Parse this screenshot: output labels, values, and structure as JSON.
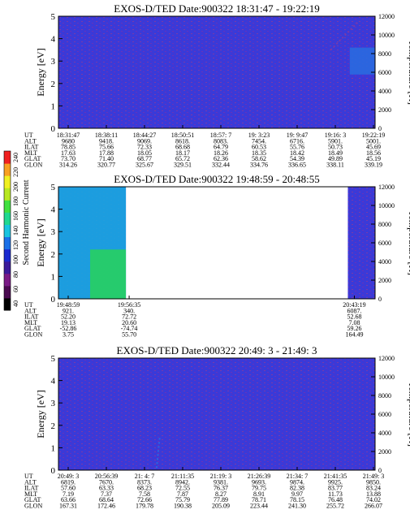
{
  "figure": {
    "colorbar": {
      "label": "Second Harmonic Current",
      "ticks": [
        "40",
        "60",
        "80",
        "100",
        "120",
        "140",
        "160",
        "180",
        "200",
        "220",
        "240"
      ],
      "colors": [
        "#000000",
        "#4a0a50",
        "#7a1a86",
        "#3a1a9a",
        "#1a2ad0",
        "#1a70e8",
        "#18c4e0",
        "#20d890",
        "#40e040",
        "#b8e820",
        "#f0f020",
        "#f8a020",
        "#f02020"
      ]
    },
    "cmap": {
      "background": "#3a3ad8",
      "speckle": "#7a3aa8",
      "cyan": "#19a8e0",
      "green": "#28d060",
      "blue": "#2a6ae0"
    }
  },
  "chart_data": [
    {
      "type": "heatmap",
      "title": "EXOS-D/TED   Date:900322   18:31:47 - 19:22:19",
      "ylabel": "Energy [eV]",
      "ylabel_right": "Temperature [K]",
      "ylim": [
        0,
        5
      ],
      "yticks": [
        "0",
        "1",
        "2",
        "3",
        "4",
        "5"
      ],
      "ylim_right": [
        0,
        12000
      ],
      "yticks_right": [
        "0",
        "2000",
        "4000",
        "6000",
        "8000",
        "10000",
        "12000"
      ],
      "data_columns": [
        0,
        1
      ],
      "features": [
        {
          "kind": "hot_region",
          "x": [
            0.92,
            1.0
          ],
          "y": [
            2.4,
            3.6
          ],
          "level": "blue"
        },
        {
          "kind": "trail",
          "x": [
            0.86,
            0.95
          ],
          "y": [
            3.5,
            4.8
          ],
          "level": "speckle"
        }
      ],
      "ephemeris": {
        "labels": [
          "UT",
          "ALT",
          "ILAT",
          "MLT",
          "GLAT",
          "GLON"
        ],
        "columns": [
          [
            "18:31:47",
            "9680",
            "78.85",
            "17.63",
            "73.70",
            "314.26"
          ],
          [
            "18:38:11",
            "9418.",
            "75.66",
            "17.88",
            "71.40",
            "320.77"
          ],
          [
            "18:44:27",
            "9069.",
            "72.33",
            "18.05",
            "68.77",
            "325.67"
          ],
          [
            "18:50:51",
            "8618.",
            "68.68",
            "18.17",
            "65.72",
            "329.51"
          ],
          [
            "18:57: 7",
            "8083.",
            "64.79",
            "18.26",
            "62.36",
            "332.44"
          ],
          [
            "19: 3:23",
            "7454.",
            "60.53",
            "18.35",
            "58.62",
            "334.76"
          ],
          [
            "19: 9:47",
            "6716.",
            "55.76",
            "18.42",
            "54.39",
            "336.65"
          ],
          [
            "19:16: 3",
            "5901.",
            "50.73",
            "18.49",
            "49.89",
            "338.11"
          ],
          [
            "19:22:19",
            "5001.",
            "45.69",
            "18.56",
            "45.19",
            "339.19"
          ]
        ]
      }
    },
    {
      "type": "heatmap",
      "title": "EXOS-D/TED   Date:900322   19:48:59 - 20:48:55",
      "ylabel": "Energy [eV]",
      "ylabel_right": "Temperature [K]",
      "ylim": [
        0,
        5
      ],
      "yticks": [
        "0",
        "1",
        "2",
        "3",
        "4",
        "5"
      ],
      "ylim_right": [
        0,
        12000
      ],
      "yticks_right": [
        "0",
        "2000",
        "4000",
        "6000",
        "8000",
        "10000",
        "12000"
      ],
      "data_columns": [
        [
          0,
          0.213
        ],
        [
          0.914,
          1.0
        ]
      ],
      "features": [
        {
          "kind": "hot_region",
          "x": [
            0.0,
            0.213
          ],
          "y": [
            0,
            5
          ],
          "level": "cyan"
        },
        {
          "kind": "hot_region",
          "x": [
            0.1,
            0.213
          ],
          "y": [
            0,
            2.2
          ],
          "level": "green"
        }
      ],
      "ephemeris": {
        "labels": [
          "UT",
          "ALT",
          "ILAT",
          "MLT",
          "GLAT",
          "GLON"
        ],
        "columns": [
          [
            "19:48:59",
            "921.",
            "52.20",
            "19.13",
            "-52.86",
            "3.75"
          ],
          [
            "19:56:35",
            "340.",
            "72.72",
            "20.60",
            "-74.74",
            "55.70"
          ],
          [
            "20:43:19",
            "6087.",
            "52.68",
            "7.08",
            "59.26",
            "164.49"
          ]
        ]
      }
    },
    {
      "type": "heatmap",
      "title": "EXOS-D/TED   Date:900322   20:49: 3 - 21:49: 3",
      "ylabel": "Energy [eV]",
      "ylabel_right": "Temperature [K]",
      "ylim": [
        0,
        5
      ],
      "yticks": [
        "0",
        "1",
        "2",
        "3",
        "4",
        "5"
      ],
      "ylim_right": [
        0,
        12000
      ],
      "yticks_right": [
        "0",
        "2000",
        "4000",
        "6000",
        "8000",
        "10000",
        "12000"
      ],
      "data_columns": [
        0,
        1
      ],
      "features": [
        {
          "kind": "trail",
          "x": [
            0.31,
            0.32
          ],
          "y": [
            0.1,
            1.5
          ],
          "level": "blue"
        }
      ],
      "ephemeris": {
        "labels": [
          "UT",
          "ALT",
          "ILAT",
          "MLT",
          "GLAT",
          "GLON"
        ],
        "columns": [
          [
            "20:49: 3",
            "6819.",
            "57.60",
            "7.19",
            "63.66",
            "167.31"
          ],
          [
            "20:56:39",
            "7670.",
            "63.33",
            "7.37",
            "68.64",
            "172.46"
          ],
          [
            "21: 4: 7",
            "8373.",
            "68.23",
            "7.58",
            "72.66",
            "179.78"
          ],
          [
            "21:11:35",
            "8942.",
            "72.55",
            "7.87",
            "75.79",
            "190.38"
          ],
          [
            "21:19: 3",
            "9381.",
            "76.37",
            "8.27",
            "77.89",
            "205.09"
          ],
          [
            "21:26:39",
            "9693.",
            "79.75",
            "8.91",
            "78.71",
            "223.44"
          ],
          [
            "21:34: 7",
            "9874.",
            "82.38",
            "9.97",
            "78.15",
            "241.30"
          ],
          [
            "21:41:35",
            "9925.",
            "83.77",
            "11.73",
            "76.48",
            "255.72"
          ],
          [
            "21:49: 3",
            "9850.",
            "83.24",
            "13.88",
            "74.02",
            "266.07"
          ]
        ]
      }
    }
  ]
}
